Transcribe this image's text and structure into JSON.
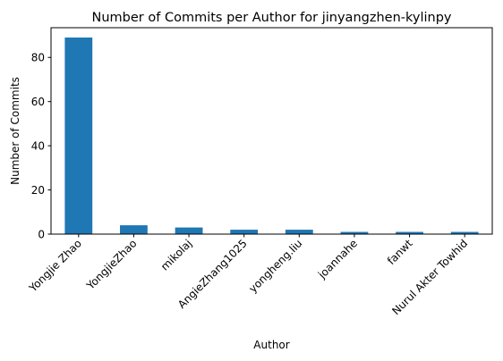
{
  "chart_data": {
    "type": "bar",
    "title": "Number of Commits per Author for jinyangzhen-kylinpy",
    "xlabel": "Author",
    "ylabel": "Number of Commits",
    "categories": [
      "Yongjie Zhao",
      "YongjieZhao",
      "mikolaj",
      "AngieZhang1025",
      "yongheng.liu",
      "joannahe",
      "fanwt",
      "Nurul Akter Towhid"
    ],
    "values": [
      89,
      4,
      3,
      2,
      2,
      1,
      1,
      1
    ],
    "ylim": [
      0,
      93.45
    ],
    "yticks": [
      0,
      20,
      40,
      60,
      80
    ],
    "grid": false,
    "legend": "none",
    "bar_color": "#1f77b4"
  }
}
